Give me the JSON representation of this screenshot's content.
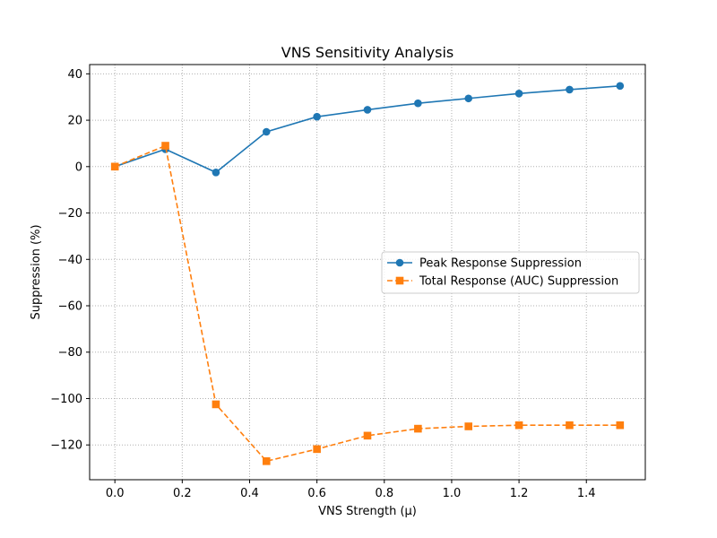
{
  "chart_data": {
    "type": "line",
    "title": "VNS Sensitivity Analysis",
    "xlabel": "VNS Strength (μ)",
    "ylabel": "Suppression (%)",
    "xlim": [
      -0.075,
      1.575
    ],
    "ylim": [
      -135,
      44
    ],
    "xticks": [
      0.0,
      0.2,
      0.4,
      0.6,
      0.8,
      1.0,
      1.2,
      1.4
    ],
    "xtick_labels": [
      "0.0",
      "0.2",
      "0.4",
      "0.6",
      "0.8",
      "1.0",
      "1.2",
      "1.4"
    ],
    "yticks": [
      40,
      20,
      0,
      -20,
      -40,
      -60,
      -80,
      -100,
      -120
    ],
    "ytick_labels": [
      "40",
      "20",
      "0",
      "−20",
      "−40",
      "−60",
      "−80",
      "−100",
      "−120"
    ],
    "grid": true,
    "legend_position": "center-right",
    "x": [
      0.0,
      0.15,
      0.3,
      0.45,
      0.6,
      0.75,
      0.9,
      1.05,
      1.2,
      1.35,
      1.5
    ],
    "series": [
      {
        "name": "Peak Response Suppression",
        "color": "#1f77b4",
        "marker": "circle",
        "linestyle": "solid",
        "values": [
          0.0,
          7.5,
          -2.5,
          15.0,
          21.5,
          24.5,
          27.3,
          29.4,
          31.5,
          33.2,
          34.8
        ]
      },
      {
        "name": "Total Response (AUC) Suppression",
        "color": "#ff7f0e",
        "marker": "square",
        "linestyle": "dashed",
        "values": [
          0.0,
          9.0,
          -102.5,
          -127.0,
          -121.8,
          -116.0,
          -113.0,
          -112.0,
          -111.5,
          -111.5,
          -111.5
        ]
      }
    ]
  }
}
